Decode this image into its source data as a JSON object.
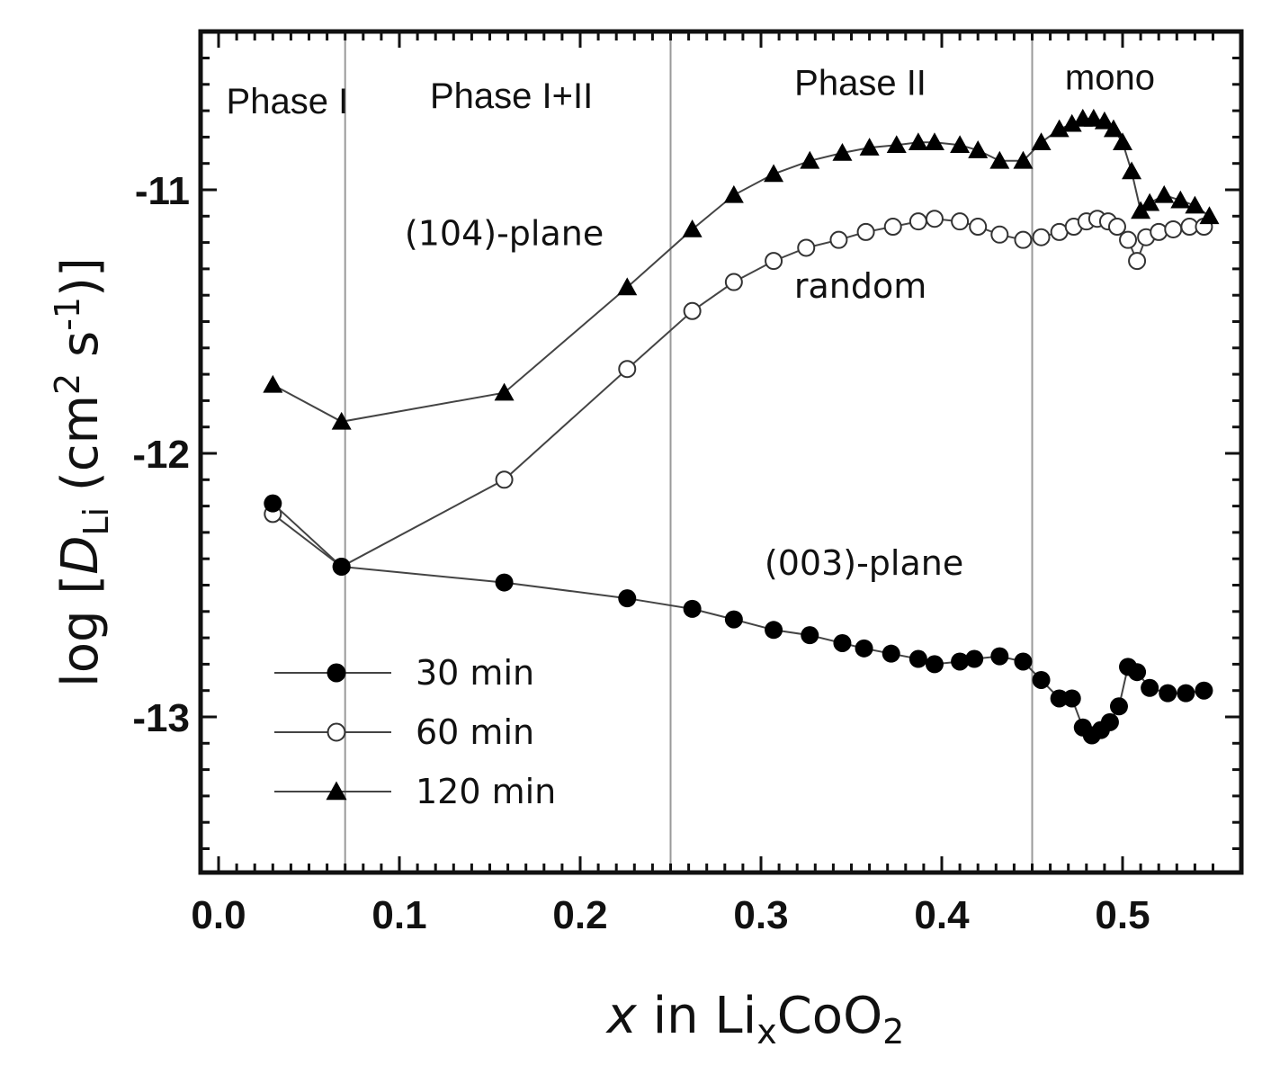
{
  "chart_data": {
    "type": "line",
    "title": "",
    "xlabel": {
      "italic": "x",
      "text": " in Li",
      "sub1": "x",
      "mid": "CoO",
      "sub2": "2"
    },
    "ylabel": {
      "pre": "log [",
      "italic": "D",
      "sub": "Li",
      "post1": " (cm",
      "sup1": "2",
      "post2": " s",
      "sup2": "-1",
      "post3": ")]"
    },
    "xlim": [
      0.0,
      0.56
    ],
    "ylim": [
      -13.6,
      -10.4
    ],
    "x_ticks": [
      0.0,
      0.1,
      0.2,
      0.3,
      0.4,
      0.5
    ],
    "x_tick_labels": [
      "0.0",
      "0.1",
      "0.2",
      "0.3",
      "0.4",
      "0.5"
    ],
    "y_ticks": [
      -11,
      -12,
      -13
    ],
    "y_tick_labels": [
      "-11",
      "-12",
      "-13"
    ],
    "phase_boundaries": [
      0.07,
      0.25,
      0.45
    ],
    "phase_labels": [
      {
        "text": "Phase I",
        "x": 0.038,
        "y": -10.71
      },
      {
        "text": "Phase I+II",
        "x": 0.162,
        "y": -10.69
      },
      {
        "text": "Phase II",
        "x": 0.355,
        "y": -10.64
      },
      {
        "text": "mono",
        "x": 0.493,
        "y": -10.62
      }
    ],
    "annotations": [
      {
        "text": "(104)-plane",
        "x": 0.158,
        "y": -11.21
      },
      {
        "text": "random",
        "x": 0.355,
        "y": -11.41
      },
      {
        "text": "(003)-plane",
        "x": 0.357,
        "y": -12.46
      }
    ],
    "series": [
      {
        "name": "30 min",
        "marker": "filled-circle",
        "x": [
          0.03,
          0.068,
          0.158,
          0.226,
          0.262,
          0.285,
          0.307,
          0.327,
          0.345,
          0.357,
          0.372,
          0.387,
          0.396,
          0.41,
          0.418,
          0.432,
          0.445,
          0.455,
          0.465,
          0.472,
          0.478,
          0.483,
          0.488,
          0.493,
          0.498,
          0.503,
          0.508,
          0.515,
          0.525,
          0.535,
          0.545
        ],
        "y": [
          -12.19,
          -12.43,
          -12.49,
          -12.55,
          -12.59,
          -12.63,
          -12.67,
          -12.69,
          -12.72,
          -12.74,
          -12.76,
          -12.78,
          -12.8,
          -12.79,
          -12.78,
          -12.77,
          -12.79,
          -12.86,
          -12.93,
          -12.93,
          -13.04,
          -13.07,
          -13.05,
          -13.02,
          -12.96,
          -12.81,
          -12.83,
          -12.89,
          -12.91,
          -12.91,
          -12.9
        ],
        "values": [
          -12.19,
          -12.43,
          -12.49,
          -12.55,
          -12.59,
          -12.63,
          -12.67,
          -12.69,
          -12.72,
          -12.74,
          -12.76,
          -12.78,
          -12.8,
          -12.79,
          -12.78,
          -12.77,
          -12.79,
          -12.86,
          -12.93,
          -12.93,
          -13.04,
          -13.07,
          -13.05,
          -13.02,
          -12.96,
          -12.81,
          -12.83,
          -12.89,
          -12.91,
          -12.91,
          -12.9
        ]
      },
      {
        "name": "60 min",
        "marker": "open-circle",
        "x": [
          0.03,
          0.068,
          0.158,
          0.226,
          0.262,
          0.285,
          0.307,
          0.325,
          0.343,
          0.358,
          0.373,
          0.387,
          0.396,
          0.41,
          0.42,
          0.432,
          0.445,
          0.455,
          0.465,
          0.473,
          0.48,
          0.486,
          0.492,
          0.497,
          0.503,
          0.508,
          0.513,
          0.52,
          0.528,
          0.537,
          0.545
        ],
        "y": [
          -12.23,
          -12.43,
          -12.1,
          -11.68,
          -11.46,
          -11.35,
          -11.27,
          -11.22,
          -11.19,
          -11.16,
          -11.14,
          -11.12,
          -11.11,
          -11.12,
          -11.14,
          -11.17,
          -11.19,
          -11.18,
          -11.16,
          -11.14,
          -11.12,
          -11.11,
          -11.12,
          -11.14,
          -11.19,
          -11.27,
          -11.18,
          -11.16,
          -11.15,
          -11.14,
          -11.14
        ],
        "values": [
          -12.23,
          -12.43,
          -12.1,
          -11.68,
          -11.46,
          -11.35,
          -11.27,
          -11.22,
          -11.19,
          -11.16,
          -11.14,
          -11.12,
          -11.11,
          -11.12,
          -11.14,
          -11.17,
          -11.19,
          -11.18,
          -11.16,
          -11.14,
          -11.12,
          -11.11,
          -11.12,
          -11.14,
          -11.19,
          -11.27,
          -11.18,
          -11.16,
          -11.15,
          -11.14,
          -11.14
        ]
      },
      {
        "name": "120 min",
        "marker": "filled-triangle",
        "x": [
          0.03,
          0.068,
          0.158,
          0.226,
          0.262,
          0.285,
          0.307,
          0.327,
          0.345,
          0.36,
          0.375,
          0.387,
          0.396,
          0.41,
          0.42,
          0.432,
          0.445,
          0.455,
          0.465,
          0.472,
          0.478,
          0.484,
          0.49,
          0.495,
          0.5,
          0.505,
          0.51,
          0.515,
          0.523,
          0.532,
          0.54,
          0.548
        ],
        "y": [
          -11.74,
          -11.88,
          -11.77,
          -11.37,
          -11.15,
          -11.02,
          -10.94,
          -10.89,
          -10.86,
          -10.84,
          -10.83,
          -10.82,
          -10.82,
          -10.83,
          -10.85,
          -10.89,
          -10.89,
          -10.82,
          -10.77,
          -10.75,
          -10.73,
          -10.73,
          -10.74,
          -10.77,
          -10.82,
          -10.93,
          -11.08,
          -11.05,
          -11.02,
          -11.04,
          -11.06,
          -11.1
        ],
        "values": [
          -11.74,
          -11.88,
          -11.77,
          -11.37,
          -11.15,
          -11.02,
          -10.94,
          -10.89,
          -10.86,
          -10.84,
          -10.83,
          -10.82,
          -10.82,
          -10.83,
          -10.85,
          -10.89,
          -10.89,
          -10.82,
          -10.77,
          -10.75,
          -10.73,
          -10.73,
          -10.74,
          -10.77,
          -10.82,
          -10.93,
          -11.08,
          -11.05,
          -11.02,
          -11.04,
          -11.06,
          -11.1
        ]
      }
    ],
    "legend": {
      "position": "lower-left",
      "entries": [
        "30 min",
        "60 min",
        "120 min"
      ]
    },
    "grid": false
  }
}
